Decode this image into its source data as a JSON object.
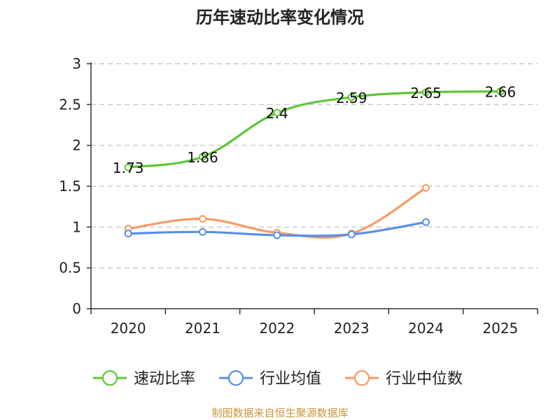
{
  "chart_data": {
    "type": "line",
    "title": "历年速动比率变化情况",
    "categories": [
      "2020",
      "2021",
      "2022",
      "2023",
      "2024",
      "2025"
    ],
    "ylim": [
      0,
      3
    ],
    "yticks": [
      "0",
      "0.5",
      "1",
      "1.5",
      "2",
      "2.5",
      "3"
    ],
    "grid": "horizontal-dashed",
    "legend_position": "bottom",
    "series": [
      {
        "name": "速动比率",
        "color": "#5cc832",
        "values": [
          1.73,
          1.86,
          2.4,
          2.59,
          2.65,
          2.66
        ],
        "labels": [
          "1.73",
          "1.86",
          "2.4",
          "2.59",
          "2.65",
          "2.66"
        ],
        "show_labels": true
      },
      {
        "name": "行业均值",
        "color": "#5b8ee6",
        "values": [
          0.92,
          0.94,
          0.9,
          0.91,
          1.06,
          null
        ],
        "show_labels": false
      },
      {
        "name": "行业中位数",
        "color": "#f79a64",
        "values": [
          0.98,
          1.1,
          0.93,
          0.92,
          1.48,
          null
        ],
        "show_labels": false
      }
    ],
    "source": "制图数据来自恒生聚源数据库"
  }
}
